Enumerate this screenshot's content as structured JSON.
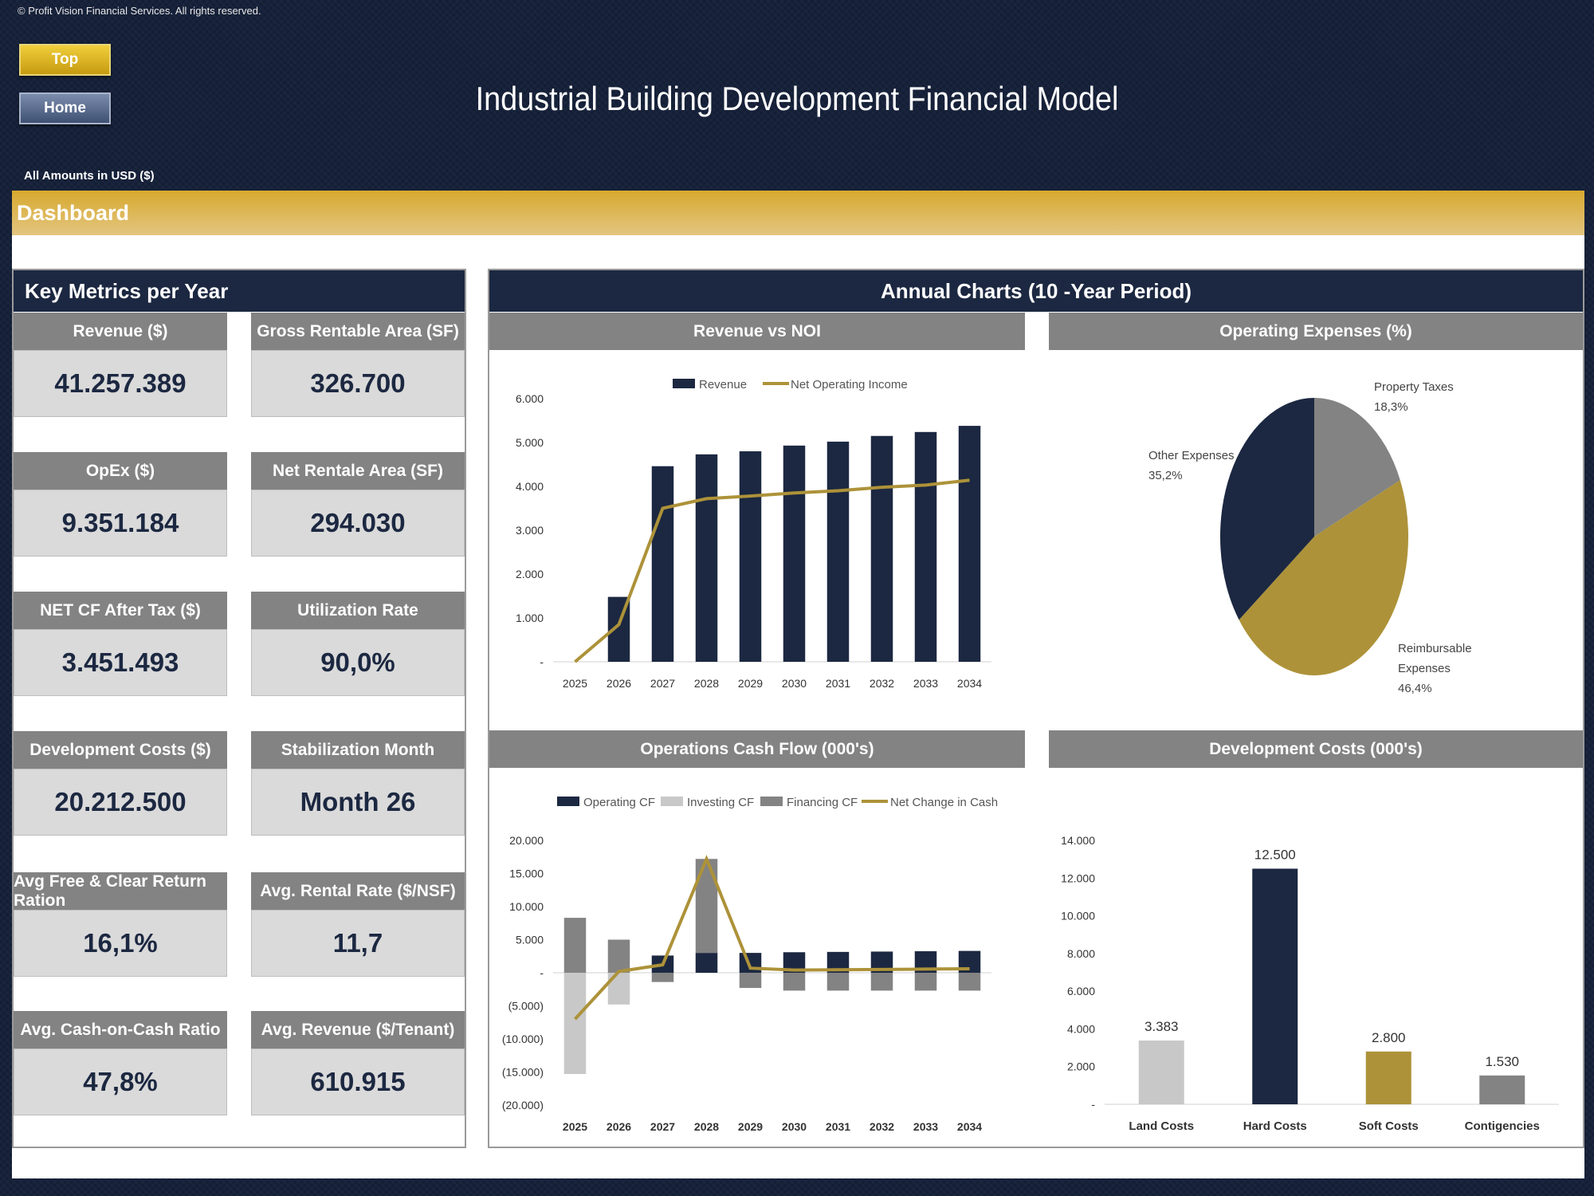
{
  "copyright": "© Profit Vision Financial Services. All rights reserved.",
  "nav": {
    "top": "Top",
    "home": "Home"
  },
  "title": "Industrial Building Development Financial Model",
  "amounts_note": "All Amounts in  USD ($)",
  "section": "Dashboard",
  "key_metrics": {
    "title": "Key Metrics per Year",
    "items": [
      {
        "label": "Revenue ($)",
        "value": "41.257.389"
      },
      {
        "label": "Gross Rentable Area (SF)",
        "value": "326.700"
      },
      {
        "label": "OpEx ($)",
        "value": "9.351.184"
      },
      {
        "label": "Net Rentale Area (SF)",
        "value": "294.030"
      },
      {
        "label": "NET CF After Tax ($)",
        "value": "3.451.493"
      },
      {
        "label": "Utilization Rate",
        "value": "90,0%"
      },
      {
        "label": "Development Costs ($)",
        "value": "20.212.500"
      },
      {
        "label": "Stabilization Month",
        "value": "Month 26"
      },
      {
        "label": "Avg Free & Clear Return Ration",
        "value": "16,1%"
      },
      {
        "label": "Avg. Rental Rate ($/NSF)",
        "value": "11,7"
      },
      {
        "label": "Avg. Cash-on-Cash Ratio",
        "value": "47,8%"
      },
      {
        "label": "Avg. Revenue ($/Tenant)",
        "value": "610.915"
      }
    ]
  },
  "annual_title": "Annual Charts (10 -Year Period)",
  "colors": {
    "navy": "#1c2841",
    "gold": "#ad9239",
    "gray": "#838383",
    "light_gray": "#c8c8c8"
  },
  "chart_data": [
    {
      "id": "revenue_noi",
      "type": "bar",
      "title": "Revenue vs NOI",
      "categories": [
        "2025",
        "2026",
        "2027",
        "2028",
        "2029",
        "2030",
        "2031",
        "2032",
        "2033",
        "2034"
      ],
      "y_ticks": [
        "-",
        "1.000",
        "2.000",
        "3.000",
        "4.000",
        "5.000",
        "6.000"
      ],
      "ylim": [
        0,
        6000
      ],
      "series": [
        {
          "name": "Revenue",
          "kind": "bar",
          "color": "#1c2841",
          "values": [
            0,
            1480,
            4460,
            4730,
            4800,
            4930,
            5020,
            5150,
            5240,
            5380
          ]
        },
        {
          "name": "Net Operating Income",
          "kind": "line",
          "color": "#ad9239",
          "values": [
            0,
            850,
            3500,
            3720,
            3780,
            3850,
            3900,
            3980,
            4030,
            4140
          ]
        }
      ],
      "legend": "top"
    },
    {
      "id": "opex_pct",
      "type": "pie",
      "title": "Operating Expenses (%)",
      "slices": [
        {
          "label": "Property Taxes",
          "value_label": "18,3%",
          "value": 18.3,
          "color": "#838383"
        },
        {
          "label": "Reimbursable Expenses",
          "label_lines": [
            "Reimbursable",
            "Expenses"
          ],
          "value_label": "46,4%",
          "value": 46.4,
          "color": "#ad9239"
        },
        {
          "label": "Other Expenses",
          "value_label": "35,2%",
          "value": 35.2,
          "color": "#1c2841"
        }
      ]
    },
    {
      "id": "ops_cash_flow",
      "type": "bar",
      "title": "Operations Cash Flow (000's)",
      "categories": [
        "2025",
        "2026",
        "2027",
        "2028",
        "2029",
        "2030",
        "2031",
        "2032",
        "2033",
        "2034"
      ],
      "y_ticks": [
        "(20.000)",
        "(15.000)",
        "(10.000)",
        "(5.000)",
        "-",
        "5.000",
        "10.000",
        "15.000",
        "20.000"
      ],
      "ylim": [
        -20000,
        20000
      ],
      "series": [
        {
          "name": "Operating CF",
          "kind": "bar",
          "color": "#1c2841",
          "values": [
            0,
            0,
            2600,
            3000,
            3000,
            3100,
            3150,
            3200,
            3250,
            3300
          ]
        },
        {
          "name": "Investing CF",
          "kind": "bar",
          "color": "#c8c8c8",
          "values": [
            -15300,
            -4800,
            0,
            0,
            0,
            0,
            0,
            0,
            0,
            0
          ]
        },
        {
          "name": "Financing CF",
          "kind": "bar",
          "color": "#838383",
          "values": [
            8300,
            5000,
            -1400,
            14200,
            -2300,
            -2700,
            -2700,
            -2700,
            -2700,
            -2700
          ]
        },
        {
          "name": "Net Change in Cash",
          "kind": "line",
          "color": "#ad9239",
          "values": [
            -7000,
            200,
            1200,
            17200,
            700,
            400,
            450,
            500,
            550,
            600
          ]
        }
      ],
      "legend": "top"
    },
    {
      "id": "dev_costs",
      "type": "bar",
      "title": "Development Costs (000's)",
      "categories": [
        "Land Costs",
        "Hard Costs",
        "Soft Costs",
        "Contigencies"
      ],
      "values": [
        3383,
        12500,
        2800,
        1530
      ],
      "value_labels": [
        "3.383",
        "12.500",
        "2.800",
        "1.530"
      ],
      "bar_colors": [
        "#c8c8c8",
        "#1c2841",
        "#ad9239",
        "#838383"
      ],
      "y_ticks": [
        "-",
        "2.000",
        "4.000",
        "6.000",
        "8.000",
        "10.000",
        "12.000",
        "14.000"
      ],
      "ylim": [
        0,
        14000
      ]
    }
  ]
}
